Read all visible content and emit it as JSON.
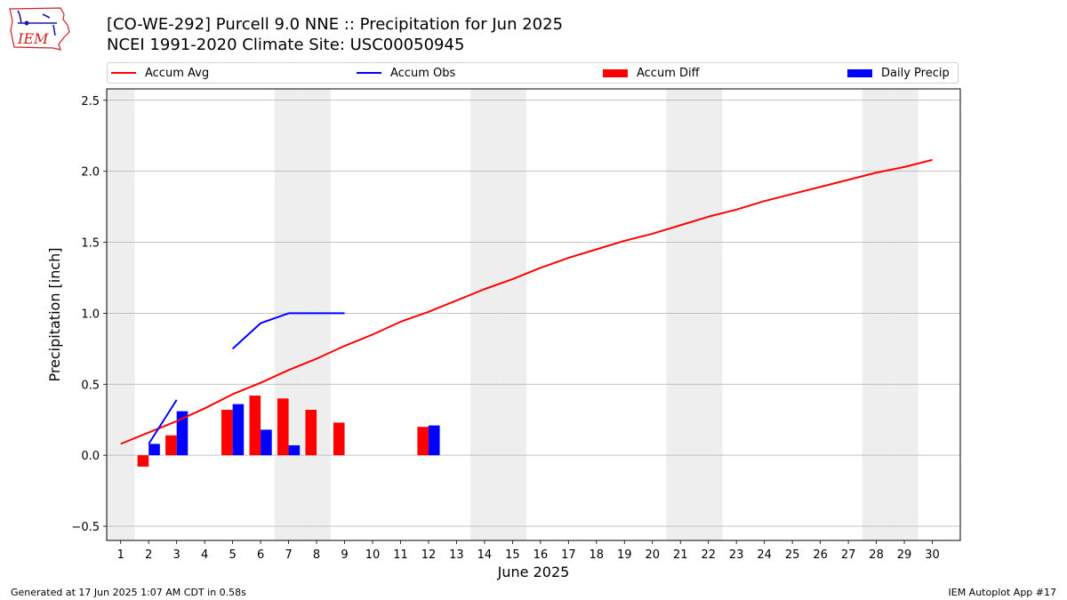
{
  "logo": {
    "text": "IEM"
  },
  "header": {
    "title_line1": "[CO-WE-292] Purcell 9.0 NNE :: Precipitation for Jun 2025",
    "title_line2": "NCEI 1991-2020 Climate Site: USC00050945"
  },
  "legend": {
    "items": [
      {
        "label": "Accum Avg",
        "kind": "line",
        "color": "#ff0000"
      },
      {
        "label": "Accum Obs",
        "kind": "line",
        "color": "#0000ff"
      },
      {
        "label": "Accum Diff",
        "kind": "bar",
        "color": "#ff0000"
      },
      {
        "label": "Daily Precip",
        "kind": "bar",
        "color": "#0000ff"
      }
    ]
  },
  "footer": {
    "left": "Generated at 17 Jun 2025 1:07 AM CDT in 0.58s",
    "right": "IEM Autoplot App #17"
  },
  "chart_data": {
    "type": "bar",
    "xlabel": "June 2025",
    "ylabel": "Precipitation [inch]",
    "xlim": [
      0.5,
      31
    ],
    "ylim": [
      -0.6,
      2.58
    ],
    "grid": "horizontal",
    "legend_position": "top",
    "x_ticks": [
      1,
      2,
      3,
      4,
      5,
      6,
      7,
      8,
      9,
      10,
      11,
      12,
      13,
      14,
      15,
      16,
      17,
      18,
      19,
      20,
      21,
      22,
      23,
      24,
      25,
      26,
      27,
      28,
      29,
      30
    ],
    "y_ticks": [
      -0.5,
      0.0,
      0.5,
      1.0,
      1.5,
      2.0,
      2.5
    ],
    "y_tick_labels": [
      "−0.5",
      "0.0",
      "0.5",
      "1.0",
      "1.5",
      "2.0",
      "2.5"
    ],
    "weekend_days": [
      1,
      7,
      8,
      14,
      15,
      21,
      22,
      28,
      29
    ],
    "weekend_color": "#eeeeee",
    "series": [
      {
        "name": "Accum Avg",
        "kind": "line",
        "color": "#ff0000",
        "x": [
          1,
          2,
          3,
          4,
          5,
          6,
          7,
          8,
          9,
          10,
          11,
          12,
          13,
          14,
          15,
          16,
          17,
          18,
          19,
          20,
          21,
          22,
          23,
          24,
          25,
          26,
          27,
          28,
          29,
          30
        ],
        "values": [
          0.08,
          0.16,
          0.24,
          0.33,
          0.43,
          0.51,
          0.6,
          0.68,
          0.77,
          0.85,
          0.94,
          1.01,
          1.09,
          1.17,
          1.24,
          1.32,
          1.39,
          1.45,
          1.51,
          1.56,
          1.62,
          1.68,
          1.73,
          1.79,
          1.84,
          1.89,
          1.94,
          1.99,
          2.03,
          2.08
        ]
      },
      {
        "name": "Accum Obs",
        "kind": "line",
        "color": "#0000ff",
        "segments": [
          {
            "x": [
              2,
              3
            ],
            "values": [
              0.08,
              0.39
            ]
          },
          {
            "x": [
              5,
              6,
              7,
              8,
              9
            ],
            "values": [
              0.75,
              0.93,
              1.0,
              1.0,
              1.0
            ]
          }
        ]
      },
      {
        "name": "Accum Diff",
        "kind": "bar",
        "color": "#ff0000",
        "offset": -0.2,
        "x": [
          2,
          3,
          5,
          6,
          7,
          8,
          9,
          12
        ],
        "values": [
          -0.08,
          0.14,
          0.32,
          0.42,
          0.4,
          0.32,
          0.23,
          0.2
        ]
      },
      {
        "name": "Daily Precip",
        "kind": "bar",
        "color": "#0000ff",
        "offset": 0.2,
        "x": [
          2,
          3,
          5,
          6,
          7,
          12
        ],
        "values": [
          0.08,
          0.31,
          0.36,
          0.18,
          0.07,
          0.21
        ]
      }
    ]
  }
}
